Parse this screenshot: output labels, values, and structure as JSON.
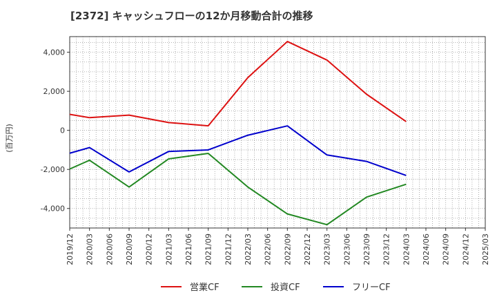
{
  "chart_data": {
    "type": "line",
    "title": "[2372]  キャッシュフローの12か月移動合計の推移",
    "ylabel": "(百万円)",
    "xlabel": "",
    "ylim": [
      -5000,
      4800
    ],
    "yticks": [
      -4000,
      -2000,
      0,
      2000,
      4000
    ],
    "ytick_labels": [
      "-4,000",
      "-2,000",
      "0",
      "2,000",
      "4,000"
    ],
    "categories": [
      "2019/12",
      "2020/03",
      "2020/06",
      "2020/09",
      "2020/12",
      "2021/03",
      "2021/06",
      "2021/09",
      "2021/12",
      "2022/03",
      "2022/06",
      "2022/09",
      "2022/12",
      "2023/03",
      "2023/06",
      "2023/09",
      "2023/12",
      "2024/03",
      "2024/06",
      "2024/09",
      "2024/12",
      "2025/03"
    ],
    "grid": true,
    "legend_position": "bottom",
    "series": [
      {
        "name": "営業CF",
        "color": "#dd1111",
        "values": [
          820,
          650,
          null,
          780,
          null,
          400,
          null,
          230,
          null,
          2700,
          null,
          4550,
          null,
          3600,
          null,
          1850,
          null,
          450,
          null,
          null,
          null,
          null
        ]
      },
      {
        "name": "投資CF",
        "color": "#228822",
        "values": [
          -1980,
          -1530,
          null,
          -2900,
          null,
          -1460,
          null,
          -1180,
          null,
          -2900,
          null,
          -4280,
          null,
          -4830,
          null,
          -3420,
          null,
          -2760,
          null,
          null,
          null,
          null
        ]
      },
      {
        "name": "フリーCF",
        "color": "#0000cc",
        "values": [
          -1170,
          -880,
          null,
          -2130,
          null,
          -1080,
          null,
          -1000,
          null,
          -250,
          null,
          230,
          null,
          -1260,
          null,
          -1590,
          null,
          -2310,
          null,
          null,
          null,
          null
        ]
      }
    ]
  }
}
